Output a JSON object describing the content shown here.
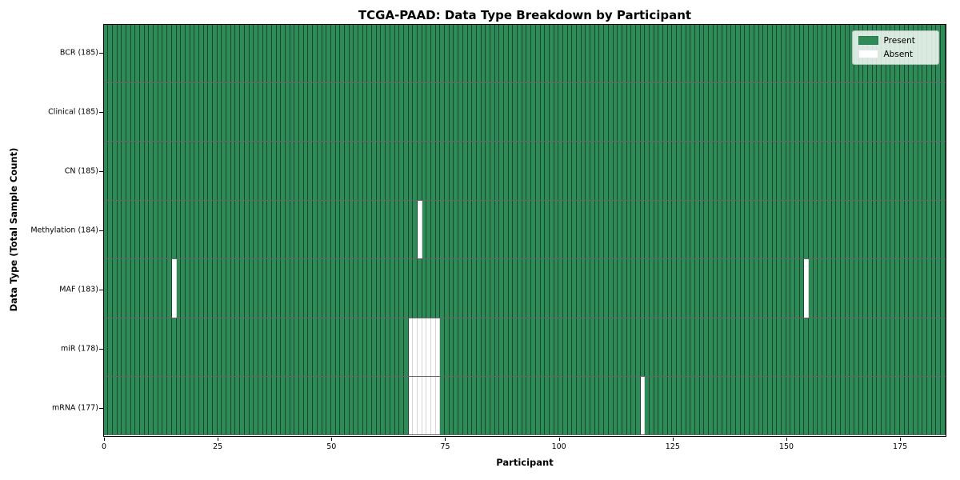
{
  "title": "TCGA-PAAD: Data Type Breakdown by Participant",
  "axes": {
    "x_label": "Participant",
    "y_label": "Data Type (Total Sample Count)",
    "x_ticks": [
      0,
      25,
      50,
      75,
      100,
      125,
      150,
      175
    ],
    "x_max": 185
  },
  "legend": {
    "items": [
      {
        "label": "Present",
        "color": "#2E8B57"
      },
      {
        "label": "Absent",
        "color": "#FFFFFF"
      }
    ]
  },
  "colors": {
    "present": "#2E8B57",
    "absent": "#FFFFFF"
  },
  "chart_data": {
    "type": "heatmap",
    "title": "TCGA-PAAD: Data Type Breakdown by Participant",
    "xlabel": "Participant",
    "ylabel": "Data Type (Total Sample Count)",
    "x_range": [
      0,
      185
    ],
    "x_tick_labels": [
      "0",
      "25",
      "50",
      "75",
      "100",
      "125",
      "150",
      "175"
    ],
    "n_participants": 185,
    "legend_entries": [
      "Present",
      "Absent"
    ],
    "legend_position": "upper right",
    "rows": [
      {
        "label": "BCR (185)",
        "data_type": "BCR",
        "total_samples": 185,
        "absent_participants": []
      },
      {
        "label": "Clinical (185)",
        "data_type": "Clinical",
        "total_samples": 185,
        "absent_participants": []
      },
      {
        "label": "CN (185)",
        "data_type": "CN",
        "total_samples": 185,
        "absent_participants": []
      },
      {
        "label": "Methylation (184)",
        "data_type": "Methylation",
        "total_samples": 184,
        "absent_participants": [
          69
        ]
      },
      {
        "label": "MAF (183)",
        "data_type": "MAF",
        "total_samples": 183,
        "absent_participants": [
          15,
          154
        ]
      },
      {
        "label": "miR (178)",
        "data_type": "miR",
        "total_samples": 178,
        "absent_participants": [
          67,
          68,
          69,
          70,
          71,
          72,
          73
        ]
      },
      {
        "label": "mRNA (177)",
        "data_type": "mRNA",
        "total_samples": 177,
        "absent_participants": [
          67,
          68,
          69,
          70,
          71,
          72,
          73,
          118
        ]
      }
    ]
  }
}
